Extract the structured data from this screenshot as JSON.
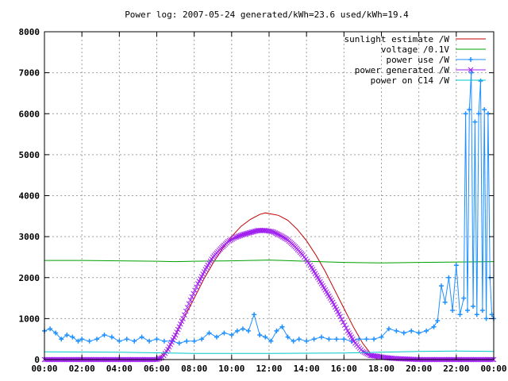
{
  "chart_data": {
    "type": "line",
    "title": "Power log: 2007-05-24 generated/kWh=23.6 used/kWh=19.4",
    "xlabel": "",
    "ylabel": "",
    "xlim_hours": [
      0,
      24
    ],
    "ylim": [
      0,
      8000
    ],
    "x_tick_labels": [
      "00:00",
      "02:00",
      "04:00",
      "06:00",
      "08:00",
      "10:00",
      "12:00",
      "14:00",
      "16:00",
      "18:00",
      "20:00",
      "22:00",
      "00:00"
    ],
    "y_ticks": [
      0,
      1000,
      2000,
      3000,
      4000,
      5000,
      6000,
      7000,
      8000
    ],
    "grid": true,
    "legend_position": "top-right",
    "series": [
      {
        "name": "sunlight estimate /W",
        "color": "#c00000",
        "style": "line",
        "points": [
          [
            6.0,
            0
          ],
          [
            6.5,
            200
          ],
          [
            7.0,
            600
          ],
          [
            7.5,
            1050
          ],
          [
            8.0,
            1500
          ],
          [
            8.5,
            1950
          ],
          [
            9.0,
            2350
          ],
          [
            9.5,
            2700
          ],
          [
            10.0,
            3000
          ],
          [
            10.5,
            3250
          ],
          [
            11.0,
            3420
          ],
          [
            11.5,
            3540
          ],
          [
            11.8,
            3580
          ],
          [
            12.5,
            3520
          ],
          [
            13.0,
            3400
          ],
          [
            13.5,
            3180
          ],
          [
            14.0,
            2900
          ],
          [
            14.5,
            2550
          ],
          [
            15.0,
            2150
          ],
          [
            15.5,
            1700
          ],
          [
            16.0,
            1250
          ],
          [
            16.5,
            800
          ],
          [
            17.0,
            400
          ],
          [
            17.5,
            100
          ],
          [
            17.8,
            0
          ]
        ]
      },
      {
        "name": "voltage /0.1V",
        "color": "#00a000",
        "style": "line",
        "points": [
          [
            0,
            2420
          ],
          [
            2,
            2420
          ],
          [
            4,
            2410
          ],
          [
            6,
            2400
          ],
          [
            7,
            2390
          ],
          [
            8,
            2400
          ],
          [
            10,
            2410
          ],
          [
            12,
            2430
          ],
          [
            14,
            2400
          ],
          [
            16,
            2370
          ],
          [
            18,
            2360
          ],
          [
            20,
            2370
          ],
          [
            22,
            2380
          ],
          [
            24,
            2390
          ]
        ]
      },
      {
        "name": "power use /W",
        "color": "#1e90ff",
        "style": "linespoints",
        "points": [
          [
            0,
            700
          ],
          [
            0.3,
            750
          ],
          [
            0.6,
            650
          ],
          [
            0.9,
            500
          ],
          [
            1.2,
            600
          ],
          [
            1.5,
            550
          ],
          [
            1.8,
            450
          ],
          [
            2.0,
            500
          ],
          [
            2.4,
            450
          ],
          [
            2.8,
            500
          ],
          [
            3.2,
            600
          ],
          [
            3.6,
            550
          ],
          [
            4.0,
            450
          ],
          [
            4.4,
            500
          ],
          [
            4.8,
            450
          ],
          [
            5.2,
            550
          ],
          [
            5.6,
            450
          ],
          [
            6.0,
            500
          ],
          [
            6.4,
            450
          ],
          [
            6.8,
            450
          ],
          [
            7.2,
            400
          ],
          [
            7.6,
            450
          ],
          [
            8.0,
            450
          ],
          [
            8.4,
            500
          ],
          [
            8.8,
            650
          ],
          [
            9.2,
            550
          ],
          [
            9.6,
            650
          ],
          [
            10.0,
            600
          ],
          [
            10.3,
            700
          ],
          [
            10.6,
            750
          ],
          [
            10.9,
            700
          ],
          [
            11.2,
            1100
          ],
          [
            11.5,
            600
          ],
          [
            11.8,
            550
          ],
          [
            12.1,
            450
          ],
          [
            12.4,
            700
          ],
          [
            12.7,
            800
          ],
          [
            13.0,
            550
          ],
          [
            13.3,
            450
          ],
          [
            13.6,
            500
          ],
          [
            14.0,
            450
          ],
          [
            14.4,
            500
          ],
          [
            14.8,
            550
          ],
          [
            15.2,
            500
          ],
          [
            15.6,
            500
          ],
          [
            16.0,
            500
          ],
          [
            16.4,
            450
          ],
          [
            16.8,
            500
          ],
          [
            17.2,
            500
          ],
          [
            17.6,
            500
          ],
          [
            18.0,
            550
          ],
          [
            18.4,
            750
          ],
          [
            18.8,
            700
          ],
          [
            19.2,
            650
          ],
          [
            19.6,
            700
          ],
          [
            20.0,
            650
          ],
          [
            20.4,
            700
          ],
          [
            20.8,
            800
          ],
          [
            21.0,
            950
          ],
          [
            21.2,
            1800
          ],
          [
            21.4,
            1400
          ],
          [
            21.6,
            2000
          ],
          [
            21.8,
            1200
          ],
          [
            22.0,
            2300
          ],
          [
            22.2,
            1100
          ],
          [
            22.4,
            1500
          ],
          [
            22.5,
            6000
          ],
          [
            22.6,
            1200
          ],
          [
            22.7,
            6100
          ],
          [
            22.8,
            7000
          ],
          [
            22.9,
            1300
          ],
          [
            23.0,
            5800
          ],
          [
            23.1,
            1100
          ],
          [
            23.2,
            6000
          ],
          [
            23.3,
            6800
          ],
          [
            23.4,
            1200
          ],
          [
            23.5,
            6100
          ],
          [
            23.6,
            1000
          ],
          [
            23.7,
            6000
          ],
          [
            23.8,
            2000
          ],
          [
            23.9,
            1100
          ],
          [
            24.0,
            1000
          ]
        ]
      },
      {
        "name": "power generated /W",
        "color": "#a020f0",
        "style": "points",
        "points": [
          [
            0,
            0
          ],
          [
            6.0,
            0
          ],
          [
            6.3,
            50
          ],
          [
            6.6,
            250
          ],
          [
            7.0,
            600
          ],
          [
            7.4,
            1000
          ],
          [
            7.8,
            1450
          ],
          [
            8.2,
            1850
          ],
          [
            8.6,
            2200
          ],
          [
            9.0,
            2500
          ],
          [
            9.4,
            2700
          ],
          [
            9.8,
            2880
          ],
          [
            10.2,
            2980
          ],
          [
            10.6,
            3050
          ],
          [
            11.0,
            3100
          ],
          [
            11.4,
            3150
          ],
          [
            11.8,
            3150
          ],
          [
            12.2,
            3120
          ],
          [
            12.6,
            3030
          ],
          [
            13.0,
            2920
          ],
          [
            13.4,
            2750
          ],
          [
            13.8,
            2550
          ],
          [
            14.2,
            2300
          ],
          [
            14.6,
            2000
          ],
          [
            15.0,
            1700
          ],
          [
            15.4,
            1400
          ],
          [
            15.8,
            1050
          ],
          [
            16.2,
            700
          ],
          [
            16.6,
            400
          ],
          [
            17.0,
            200
          ],
          [
            17.4,
            100
          ],
          [
            17.8,
            80
          ],
          [
            18.2,
            50
          ],
          [
            18.6,
            30
          ],
          [
            19.0,
            20
          ],
          [
            19.5,
            10
          ],
          [
            20.0,
            0
          ],
          [
            24.0,
            0
          ]
        ]
      },
      {
        "name": "power on C14 /W",
        "color": "#00c8c8",
        "style": "line",
        "points": [
          [
            0,
            190
          ],
          [
            4,
            180
          ],
          [
            8,
            150
          ],
          [
            12,
            150
          ],
          [
            16,
            160
          ],
          [
            20,
            200
          ],
          [
            22,
            210
          ],
          [
            24,
            200
          ]
        ]
      }
    ]
  }
}
